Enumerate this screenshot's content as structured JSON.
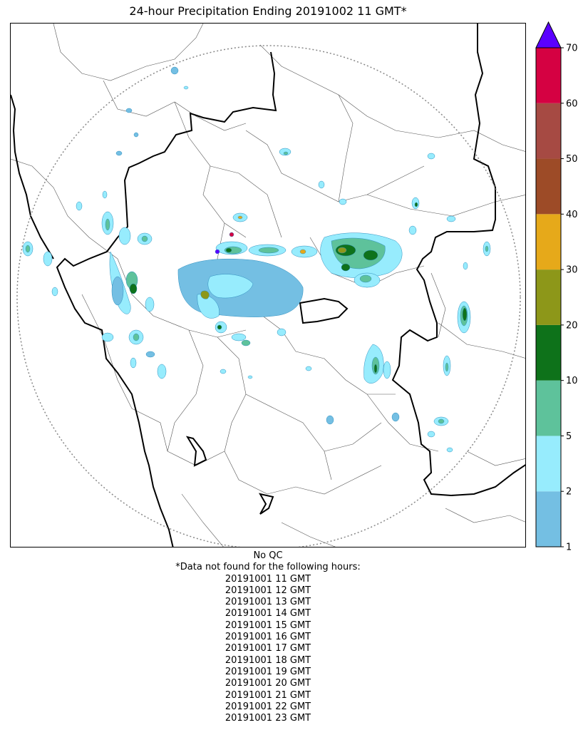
{
  "title": "24-hour Precipitation Ending 20191002 11 GMT*",
  "colorbar": {
    "ticks": [
      "1",
      "2",
      "5",
      "10",
      "20",
      "30",
      "40",
      "50",
      "60",
      "70"
    ],
    "colors": [
      "#74bfe3",
      "#97ecfd",
      "#5ec29b",
      "#0e721a",
      "#8d9719",
      "#e6a91a",
      "#9d4b27",
      "#a64a43",
      "#d50142"
    ],
    "extend_color": "#5a00ff"
  },
  "qc_note": "No QC",
  "missing_header": "*Data not found for the following hours:",
  "missing_hours": [
    "20191001 11 GMT",
    "20191001 12 GMT",
    "20191001 13 GMT",
    "20191001 14 GMT",
    "20191001 15 GMT",
    "20191001 16 GMT",
    "20191001 17 GMT",
    "20191001 18 GMT",
    "20191001 19 GMT",
    "20191001 20 GMT",
    "20191001 21 GMT",
    "20191001 22 GMT",
    "20191001 23 GMT"
  ]
}
